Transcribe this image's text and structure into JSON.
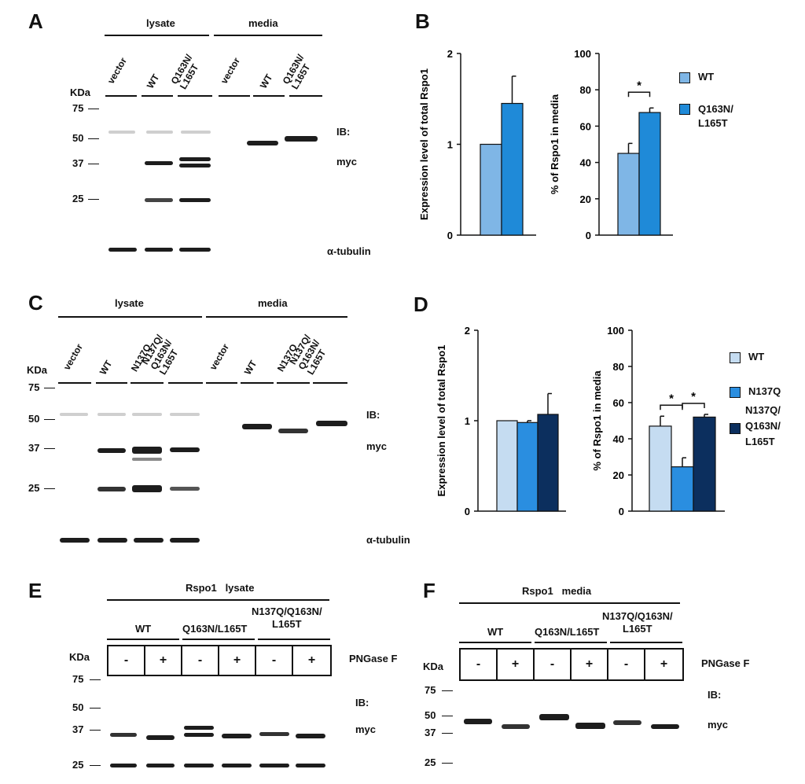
{
  "panels": {
    "A": {
      "label": "A",
      "group_left": "lysate",
      "group_right": "media",
      "lanes": [
        "vector",
        "WT",
        "Q163N/\nL165T",
        "vector",
        "WT",
        "Q163N/\nL165T"
      ],
      "kda_title": "KDa",
      "markers": [
        "75",
        "50",
        "37",
        "25"
      ],
      "ib_label": "IB:",
      "myc_label": "myc",
      "tubulin_label": "α-tubulin"
    },
    "B": {
      "label": "B",
      "legend": [
        "WT",
        "Q163N/\nL165T"
      ],
      "significance": "*"
    },
    "C": {
      "label": "C",
      "group_left": "lysate",
      "group_right": "media",
      "lanes": [
        "vector",
        "WT",
        "N137Q",
        "N137Q/\nQ163N/\nL165T",
        "vector",
        "WT",
        "N137Q",
        "N137Q/\nQ163N/\nL165T"
      ],
      "kda_title": "KDa",
      "markers": [
        "75",
        "50",
        "37",
        "25"
      ],
      "ib_label": "IB:",
      "myc_label": "myc",
      "tubulin_label": "α-tubulin"
    },
    "D": {
      "label": "D",
      "legend": [
        "WT",
        "N137Q",
        "N137Q/\nQ163N/\nL165T"
      ],
      "significance": "*"
    },
    "E": {
      "label": "E",
      "title": "Rspo1   lysate",
      "groups": [
        "WT",
        "Q163N/L165T",
        "N137Q/Q163N/\nL165T"
      ],
      "signs": [
        "-",
        "+",
        "-",
        "+",
        "-",
        "+"
      ],
      "pngase": "PNGase F",
      "kda_title": "KDa",
      "markers": [
        "75",
        "50",
        "37",
        "25"
      ],
      "ib_label": "IB:",
      "myc_label": "myc"
    },
    "F": {
      "label": "F",
      "title": "Rspo1   media",
      "groups": [
        "WT",
        "Q163N/L165T",
        "N137Q/Q163N/\nL165T"
      ],
      "signs": [
        "-",
        "+",
        "-",
        "+",
        "-",
        "+"
      ],
      "pngase": "PNGase F",
      "kda_title": "KDa",
      "markers": [
        "75",
        "50",
        "37",
        "25"
      ],
      "ib_label": "IB:",
      "myc_label": "myc"
    }
  },
  "chart_data": [
    {
      "id": "B-left",
      "type": "bar",
      "ylabel": "Expression level of total Rspo1",
      "ylim": [
        0,
        2
      ],
      "yticks": [
        0,
        1,
        2
      ],
      "series": [
        {
          "name": "WT",
          "values": [
            1.0
          ],
          "errors": [
            0
          ]
        },
        {
          "name": "Q163N/L165T",
          "values": [
            1.45
          ],
          "errors": [
            0.3
          ]
        }
      ]
    },
    {
      "id": "B-right",
      "type": "bar",
      "ylabel": "% of Rspo1 in media",
      "ylim": [
        0,
        100
      ],
      "yticks": [
        0,
        20,
        40,
        60,
        80,
        100
      ],
      "series": [
        {
          "name": "WT",
          "values": [
            45
          ],
          "errors": [
            5.5
          ]
        },
        {
          "name": "Q163N/L165T",
          "values": [
            67.5
          ],
          "errors": [
            2.5
          ]
        }
      ],
      "annotations": [
        {
          "text": "*",
          "between": [
            "WT",
            "Q163N/L165T"
          ]
        }
      ]
    },
    {
      "id": "D-left",
      "type": "bar",
      "ylabel": "Expression level of total Rspo1",
      "ylim": [
        0,
        2
      ],
      "yticks": [
        0,
        1,
        2
      ],
      "series": [
        {
          "name": "WT",
          "values": [
            1.0
          ],
          "errors": [
            0
          ]
        },
        {
          "name": "N137Q",
          "values": [
            0.98
          ],
          "errors": [
            0.02
          ]
        },
        {
          "name": "N137Q/Q163N/L165T",
          "values": [
            1.07
          ],
          "errors": [
            0.23
          ]
        }
      ]
    },
    {
      "id": "D-right",
      "type": "bar",
      "ylabel": "% of Rspo1 in media",
      "ylim": [
        0,
        100
      ],
      "yticks": [
        0,
        20,
        40,
        60,
        80,
        100
      ],
      "series": [
        {
          "name": "WT",
          "values": [
            47
          ],
          "errors": [
            5.5
          ]
        },
        {
          "name": "N137Q",
          "values": [
            24.5
          ],
          "errors": [
            5
          ]
        },
        {
          "name": "N137Q/Q163N/L165T",
          "values": [
            52
          ],
          "errors": [
            1.5
          ]
        }
      ],
      "annotations": [
        {
          "text": "*",
          "between": [
            "WT",
            "N137Q"
          ]
        },
        {
          "text": "*",
          "between": [
            "N137Q",
            "N137Q/Q163N/L165T"
          ]
        }
      ]
    }
  ],
  "colors": {
    "b_wt": "#7fb6e6",
    "b_mut": "#1f8ad8",
    "d_wt": "#c5dcf1",
    "d_n137q": "#2a8ee0",
    "d_triple": "#0c2f5e"
  }
}
